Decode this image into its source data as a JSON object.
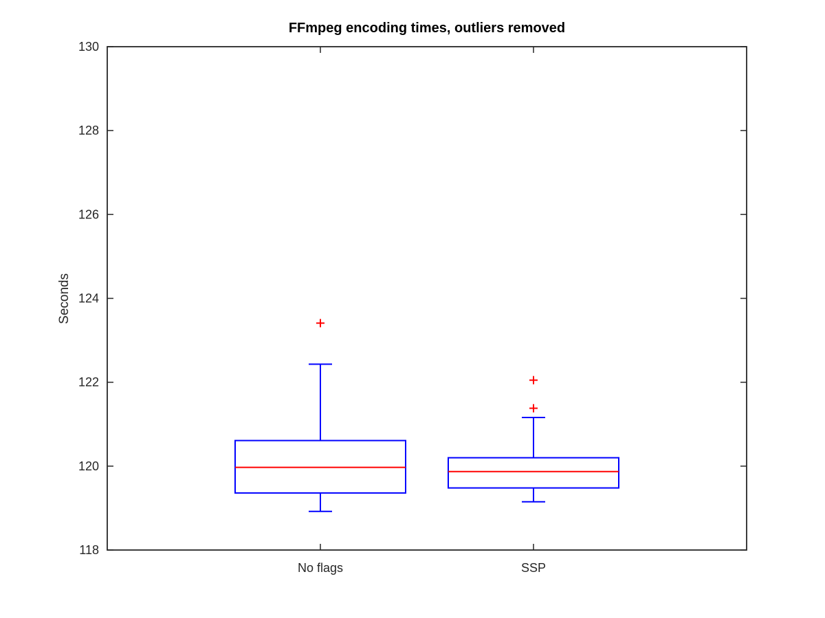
{
  "chart_data": {
    "type": "box",
    "title": "FFmpeg encoding times, outliers removed",
    "ylabel": "Seconds",
    "xlabel": "",
    "ylim": [
      118,
      130
    ],
    "yticks": [
      118,
      120,
      122,
      124,
      126,
      128,
      130
    ],
    "grid": false,
    "categories": [
      "No flags",
      "SSP"
    ],
    "boxes": [
      {
        "category": "No flags",
        "whisker_low": 118.92,
        "q1": 119.36,
        "median": 119.97,
        "q3": 120.61,
        "whisker_high": 122.43,
        "outliers": [
          123.41
        ]
      },
      {
        "category": "SSP",
        "whisker_low": 119.15,
        "q1": 119.48,
        "median": 119.87,
        "q3": 120.2,
        "whisker_high": 121.16,
        "outliers": [
          122.05,
          121.38
        ]
      }
    ],
    "colors": {
      "box": "#0000ff",
      "median": "#ff0000",
      "outlier": "#ff0000",
      "axes": "#262626"
    }
  }
}
